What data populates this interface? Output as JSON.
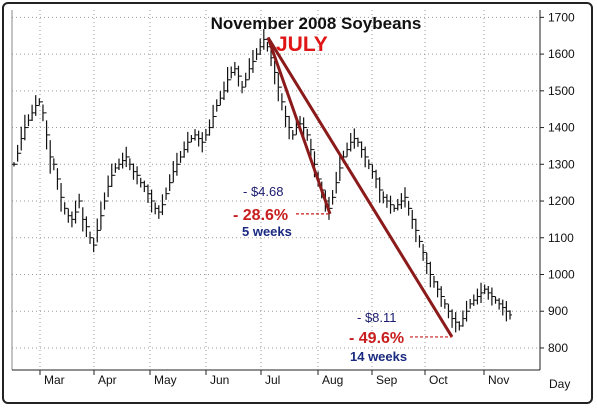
{
  "chart_data": {
    "type": "line",
    "title": "November 2008 Soybeans",
    "highlight_label": "JULY",
    "xlabel": "Day",
    "x_ticks": [
      "Mar",
      "Apr",
      "May",
      "Jun",
      "Jul",
      "Aug",
      "Sep",
      "Oct",
      "Nov"
    ],
    "y_ticks": [
      800,
      900,
      1000,
      1100,
      1200,
      1300,
      1400,
      1500,
      1600,
      1700
    ],
    "ylim": [
      740,
      1720
    ],
    "grid": true,
    "series": [
      {
        "values": [
          1300,
          1330,
          1370,
          1400,
          1420,
          1440,
          1460,
          1470,
          1440,
          1380,
          1320,
          1300,
          1260,
          1210,
          1180,
          1160,
          1150,
          1170,
          1200,
          1150,
          1130,
          1100,
          1080,
          1120,
          1160,
          1200,
          1240,
          1270,
          1290,
          1300,
          1310,
          1320,
          1300,
          1280,
          1270,
          1250,
          1240,
          1220,
          1200,
          1180,
          1170,
          1190,
          1220,
          1250,
          1280,
          1300,
          1320,
          1340,
          1360,
          1370,
          1380,
          1370,
          1360,
          1380,
          1400,
          1430,
          1460,
          1480,
          1500,
          1530,
          1550,
          1560,
          1540,
          1510,
          1530,
          1560,
          1580,
          1600,
          1620,
          1640,
          1620,
          1590,
          1550,
          1510,
          1470,
          1430,
          1400,
          1380,
          1400,
          1410,
          1400,
          1380,
          1340,
          1300,
          1260,
          1230,
          1200,
          1180,
          1210,
          1250,
          1290,
          1320,
          1340,
          1360,
          1370,
          1360,
          1340,
          1320,
          1300,
          1280,
          1260,
          1230,
          1210,
          1200,
          1190,
          1180,
          1190,
          1200,
          1210,
          1180,
          1150,
          1120,
          1090,
          1060,
          1030,
          1000,
          980,
          960,
          940,
          920,
          900,
          880,
          870,
          860,
          880,
          900,
          920,
          930,
          940,
          950,
          960,
          950,
          940,
          930,
          920,
          910,
          900,
          890
        ]
      }
    ],
    "annotations": [
      {
        "dollar": "- $4.68",
        "percent": "- 28.6%",
        "duration": "5 weeks"
      },
      {
        "dollar": "- $8.11",
        "percent": "- 49.6%",
        "duration": "14 weeks"
      }
    ]
  }
}
